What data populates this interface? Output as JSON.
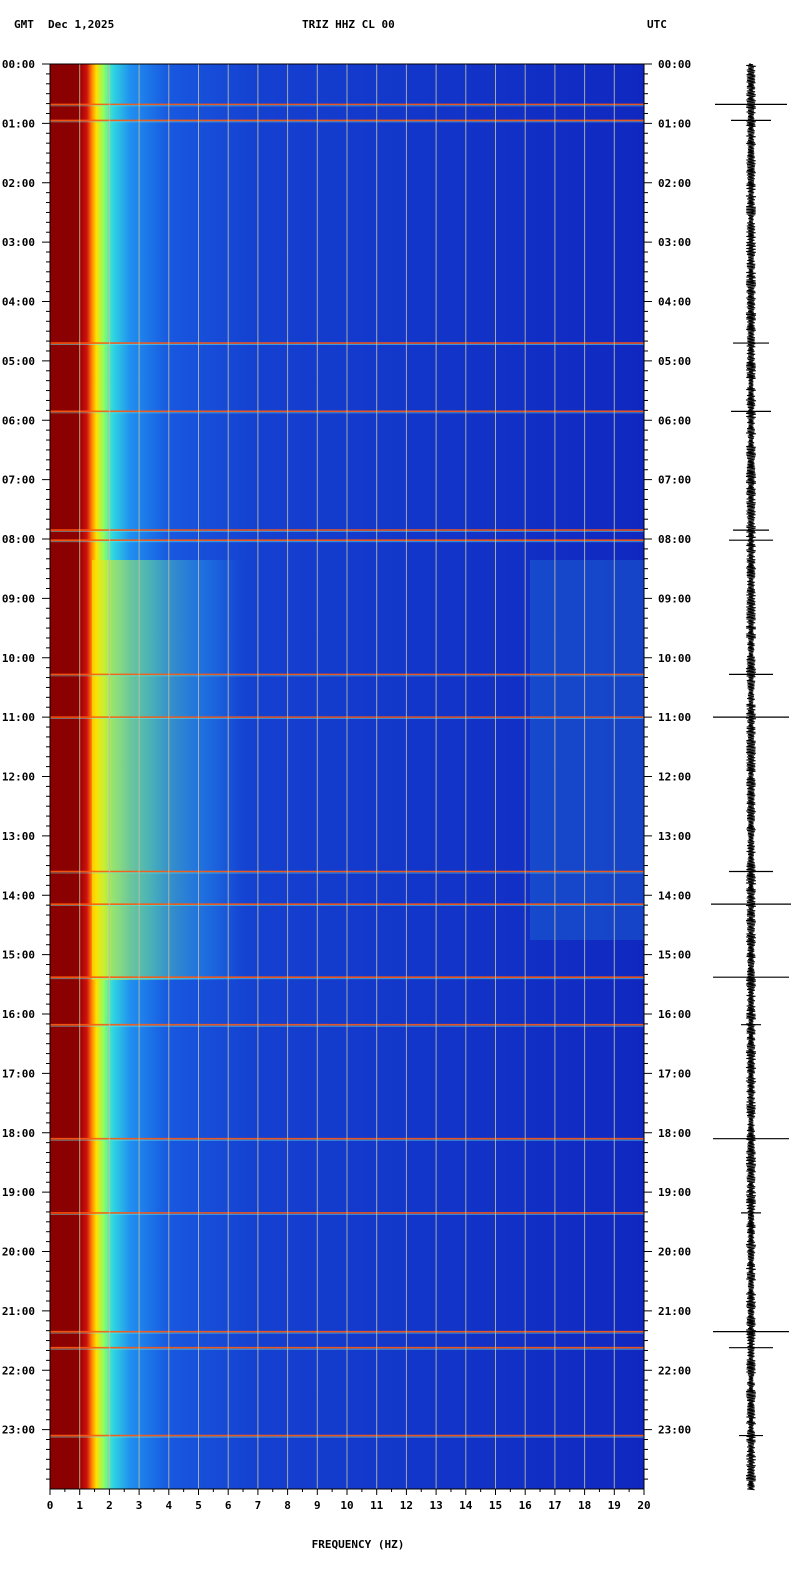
{
  "header": {
    "left_tz": "GMT",
    "date": "Dec 1,2025",
    "station": "TRIZ HHZ CL 00",
    "right_tz": "UTC"
  },
  "chart_data": {
    "type": "heatmap",
    "xlabel": "FREQUENCY (HZ)",
    "x_ticks": [
      "0",
      "1",
      "2",
      "3",
      "4",
      "5",
      "6",
      "7",
      "8",
      "9",
      "10",
      "11",
      "12",
      "13",
      "14",
      "15",
      "16",
      "17",
      "18",
      "19",
      "20"
    ],
    "xlim": [
      0,
      20
    ],
    "y_ticks": [
      "00:00",
      "01:00",
      "02:00",
      "03:00",
      "04:00",
      "05:00",
      "06:00",
      "07:00",
      "08:00",
      "09:00",
      "10:00",
      "11:00",
      "12:00",
      "13:00",
      "14:00",
      "15:00",
      "16:00",
      "17:00",
      "18:00",
      "19:00",
      "20:00",
      "21:00",
      "22:00",
      "23:00"
    ],
    "ylim_hours": [
      0,
      24
    ],
    "grid": true,
    "colors": {
      "background": "#1020c0",
      "saturated": "#8b0000",
      "grid": "#c0c0a0"
    },
    "event_hours": [
      0.68,
      0.95,
      4.7,
      5.85,
      7.85,
      8.02,
      10.28,
      11.0,
      13.6,
      14.15,
      15.38,
      16.18,
      18.1,
      19.35,
      21.35,
      21.62,
      23.1
    ],
    "seismogram_events": [
      {
        "hour": 0.68,
        "amp": 36
      },
      {
        "hour": 0.95,
        "amp": 20
      },
      {
        "hour": 4.7,
        "amp": 18
      },
      {
        "hour": 5.85,
        "amp": 20
      },
      {
        "hour": 7.85,
        "amp": 18
      },
      {
        "hour": 8.02,
        "amp": 22
      },
      {
        "hour": 10.28,
        "amp": 22
      },
      {
        "hour": 11.0,
        "amp": 38
      },
      {
        "hour": 13.6,
        "amp": 22
      },
      {
        "hour": 14.15,
        "amp": 40
      },
      {
        "hour": 15.38,
        "amp": 38
      },
      {
        "hour": 16.18,
        "amp": 10
      },
      {
        "hour": 18.1,
        "amp": 38
      },
      {
        "hour": 19.35,
        "amp": 10
      },
      {
        "hour": 21.35,
        "amp": 38
      },
      {
        "hour": 21.62,
        "amp": 22
      },
      {
        "hour": 23.1,
        "amp": 12
      }
    ]
  }
}
